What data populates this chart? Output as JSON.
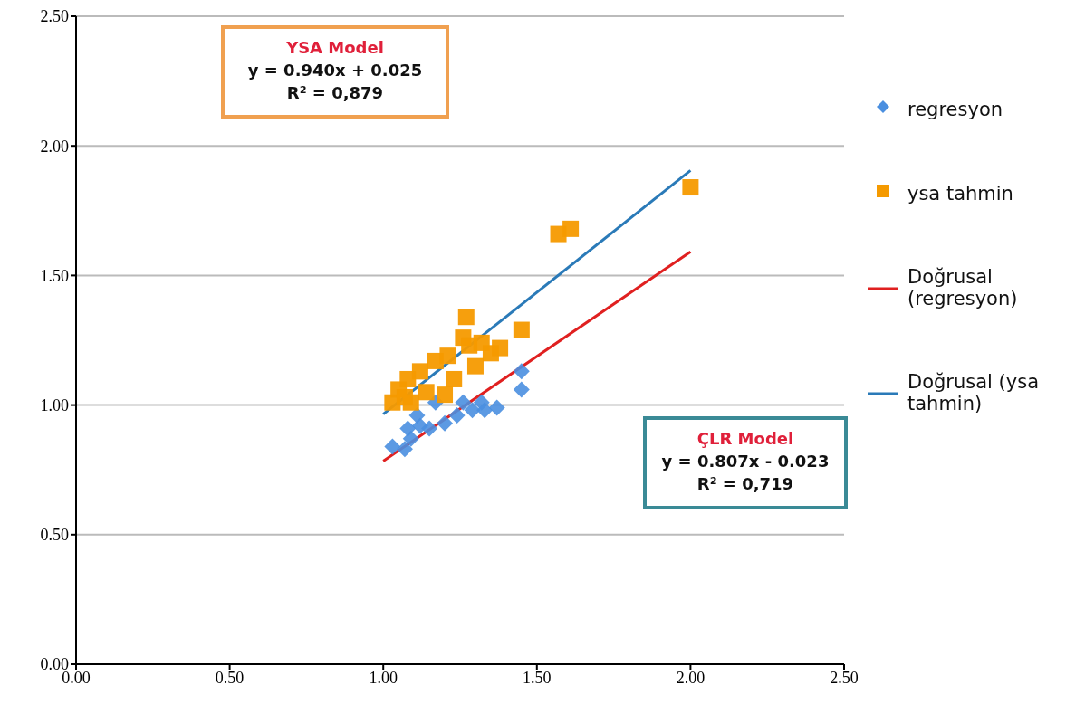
{
  "chart_data": {
    "type": "scatter",
    "xlim": [
      0,
      2.5
    ],
    "xticks": [
      {
        "value": 0,
        "label": "0.00"
      },
      {
        "value": 0.5,
        "label": "0.50"
      },
      {
        "value": 1,
        "label": "1.00"
      },
      {
        "value": 1.5,
        "label": "1.50"
      },
      {
        "value": 2,
        "label": "2.00"
      },
      {
        "value": 2.5,
        "label": "2.50"
      }
    ],
    "ylim": [
      0,
      2.5
    ],
    "yticks": [
      {
        "value": 0,
        "label": "0.00"
      },
      {
        "value": 0.5,
        "label": "0.50"
      },
      {
        "value": 1,
        "label": "1.00"
      },
      {
        "value": 1.5,
        "label": "1.50"
      },
      {
        "value": 2,
        "label": "2.00"
      },
      {
        "value": 2.5,
        "label": "2.50"
      }
    ],
    "grid": "y",
    "legend": "right",
    "series": [
      {
        "name": "regresyon",
        "marker": "diamond",
        "color": "#4a8fe0",
        "x": [
          1.45,
          1.45,
          1.03,
          1.07,
          1.09,
          1.12,
          1.15,
          1.2,
          1.24,
          1.29,
          1.33,
          1.37,
          1.11,
          1.17,
          1.26,
          1.08,
          1.32
        ],
        "values": [
          1.13,
          1.06,
          0.84,
          0.83,
          0.87,
          0.92,
          0.91,
          0.93,
          0.96,
          0.98,
          0.98,
          0.99,
          0.96,
          1.01,
          1.01,
          0.91,
          1.01
        ]
      },
      {
        "name": "ysa tahmin",
        "marker": "square",
        "color": "#f59a00",
        "x": [
          2,
          1.57,
          1.61,
          1.27,
          1.45,
          1.03,
          1.05,
          1.08,
          1.12,
          1.17,
          1.21,
          1.26,
          1.3,
          1.35,
          1.38,
          1.28,
          1.2,
          1.14,
          1.09,
          1.07,
          1.23,
          1.32
        ],
        "values": [
          1.84,
          1.66,
          1.68,
          1.34,
          1.29,
          1.01,
          1.06,
          1.1,
          1.13,
          1.17,
          1.19,
          1.26,
          1.15,
          1.2,
          1.22,
          1.23,
          1.04,
          1.05,
          1.01,
          1.03,
          1.1,
          1.24
        ]
      },
      {
        "name": "Doğrusal (regresyon)",
        "type": "line",
        "marker": "none",
        "color": "#e02020",
        "x": [
          1,
          2
        ],
        "values": [
          0.784,
          1.591
        ]
      },
      {
        "name": "Doğrusal (ysa tahmin)",
        "type": "line",
        "marker": "none",
        "color": "#2a7ab8",
        "x": [
          1,
          2
        ],
        "values": [
          0.965,
          1.905
        ]
      }
    ],
    "annotations": [
      "YSA Model",
      "y = 0.940x + 0.025",
      "R² = 0,879",
      "ÇLR Model",
      "y = 0.807x - 0.023",
      "R² = 0,719"
    ]
  }
}
